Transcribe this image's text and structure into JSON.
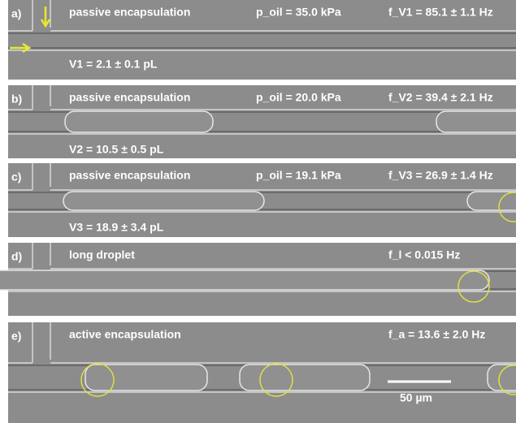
{
  "panels": [
    {
      "label": "a)",
      "mode": "passive encapsulation",
      "pressure": "p_oil = 35.0 kPa",
      "frequency": "f_V1 = 85.1 ± 1.1 Hz",
      "volume": "V1 = 2.1 ± 0.1 pL"
    },
    {
      "label": "b)",
      "mode": "passive encapsulation",
      "pressure": "p_oil = 20.0 kPa",
      "frequency": "f_V2 = 39.4 ± 2.1 Hz",
      "volume": "V2 = 10.5 ± 0.5 pL"
    },
    {
      "label": "c)",
      "mode": "passive encapsulation",
      "pressure": "p_oil = 19.1 kPa",
      "frequency": "f_V3 = 26.9 ± 1.4 Hz",
      "volume": "V3 = 18.9 ± 3.4 pL"
    },
    {
      "label": "d)",
      "mode": "long droplet",
      "frequency": "f_l < 0.015 Hz"
    },
    {
      "label": "e)",
      "mode": "active encapsulation",
      "frequency": "f_a = 13.6 ± 2.0 Hz",
      "scale_bar": "50 µm"
    }
  ]
}
